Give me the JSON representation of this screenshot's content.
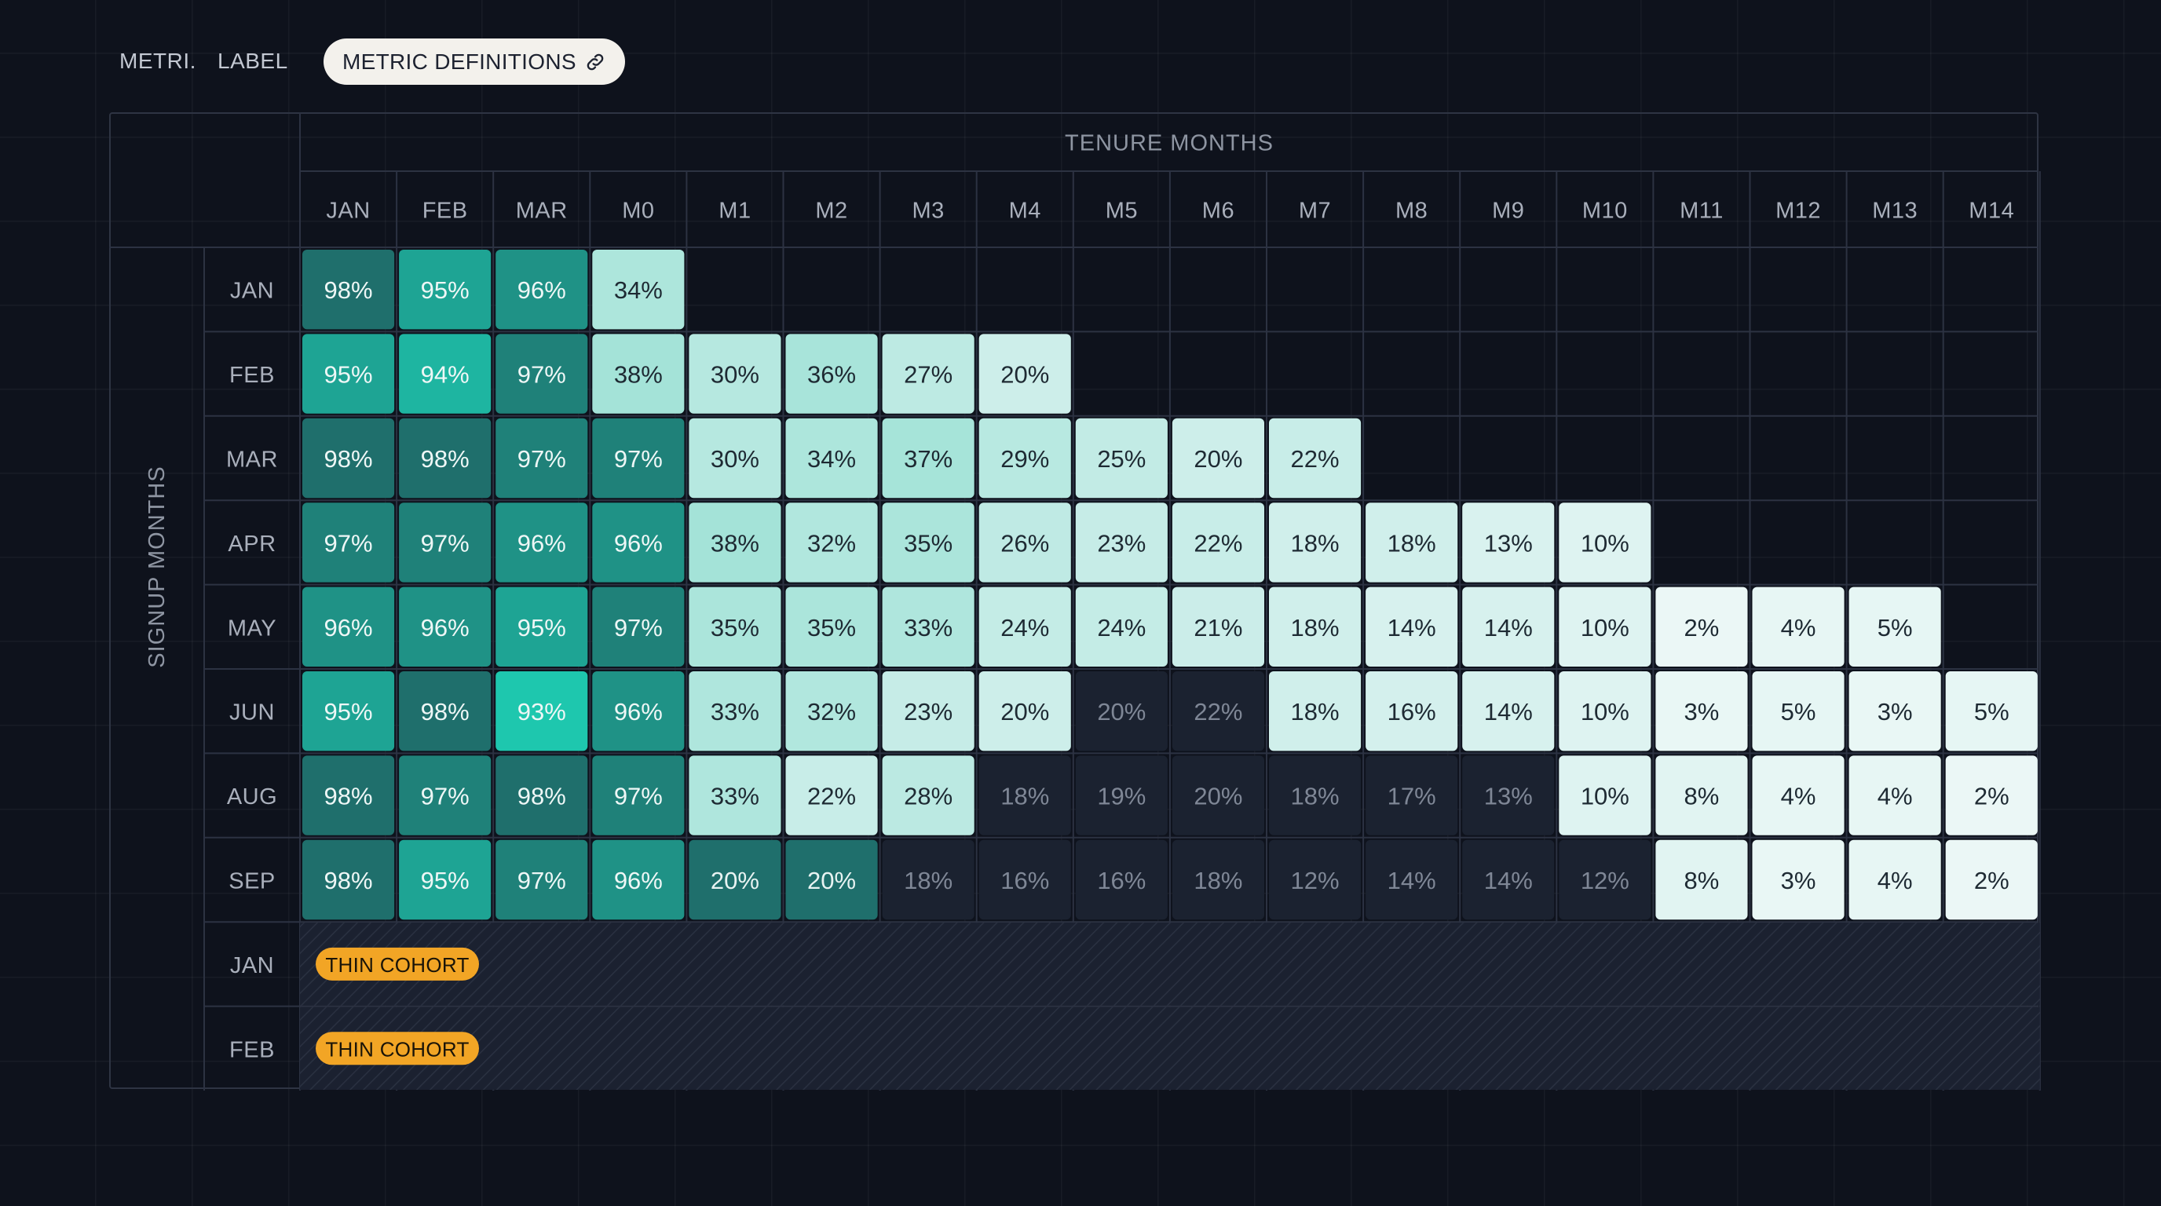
{
  "toolbar": {
    "metric_tab": "METRI.",
    "label_tab": "LABEL",
    "metric_definitions": "METRIC DEFINITIONS"
  },
  "chart_data": {
    "type": "heatmap",
    "xlabel": "TENURE MONTHS",
    "ylabel": "SIGNUP MONTHS",
    "columns": [
      "JAN",
      "FEB",
      "MAR",
      "M0",
      "M1",
      "M2",
      "M3",
      "M4",
      "M5",
      "M6",
      "M7",
      "M8",
      "M9",
      "M10",
      "M11",
      "M12",
      "M13",
      "M14"
    ],
    "rows": [
      {
        "label": "JAN",
        "values": [
          98,
          95,
          96,
          34,
          null,
          null,
          null,
          null,
          null,
          null,
          null,
          null,
          null,
          null,
          null,
          null,
          null,
          null
        ]
      },
      {
        "label": "FEB",
        "values": [
          95,
          94,
          97,
          38,
          30,
          36,
          27,
          20,
          null,
          null,
          null,
          null,
          null,
          null,
          null,
          null,
          null,
          null
        ]
      },
      {
        "label": "MAR",
        "values": [
          98,
          98,
          97,
          97,
          30,
          34,
          37,
          29,
          25,
          20,
          22,
          null,
          null,
          null,
          null,
          null,
          null,
          null
        ]
      },
      {
        "label": "APR",
        "values": [
          97,
          97,
          96,
          96,
          38,
          32,
          35,
          26,
          23,
          22,
          18,
          18,
          13,
          10,
          null,
          null,
          null,
          null
        ]
      },
      {
        "label": "MAY",
        "values": [
          96,
          96,
          95,
          97,
          35,
          35,
          33,
          24,
          24,
          21,
          18,
          14,
          14,
          10,
          2,
          4,
          5,
          null
        ]
      },
      {
        "label": "JUN",
        "values": [
          95,
          98,
          93,
          96,
          33,
          32,
          23,
          20,
          20,
          22,
          18,
          16,
          14,
          10,
          3,
          5,
          3,
          5
        ]
      },
      {
        "label": "AUG",
        "values": [
          98,
          97,
          98,
          97,
          33,
          22,
          28,
          18,
          19,
          20,
          18,
          17,
          13,
          10,
          8,
          4,
          4,
          2
        ]
      },
      {
        "label": "SEP",
        "values": [
          98,
          95,
          97,
          96,
          20,
          20,
          18,
          16,
          16,
          18,
          12,
          14,
          14,
          12,
          8,
          3,
          4,
          2
        ]
      },
      {
        "label": "JAN",
        "badge": "THIN COHORT",
        "values": []
      },
      {
        "label": "FEB",
        "badge": "THIN COHORT",
        "values": []
      }
    ],
    "muted_from_column": [
      null,
      null,
      null,
      null,
      null,
      8,
      null,
      7,
      null,
      null
    ],
    "muted_until_column": [
      null,
      null,
      null,
      null,
      null,
      9,
      null,
      12,
      13,
      null
    ],
    "muted_cells_by_row": {
      "5": [
        8,
        9
      ],
      "6": [
        7,
        8,
        9,
        10,
        11,
        12
      ],
      "7": [
        6,
        7,
        8,
        9,
        10,
        11,
        12,
        13
      ]
    },
    "dark_cells_by_row": {
      "7": [
        4,
        5
      ]
    },
    "value_suffix": "%",
    "colors": {
      "deep": "#1f6f6c",
      "mid": "#1ec7ae",
      "light": "#9fe2d6",
      "pale": "#eef8f7",
      "muted": "#1b2230",
      "muted_text": "#7f8796",
      "hatch": "#1f2533",
      "badge": "#f2a525"
    }
  }
}
